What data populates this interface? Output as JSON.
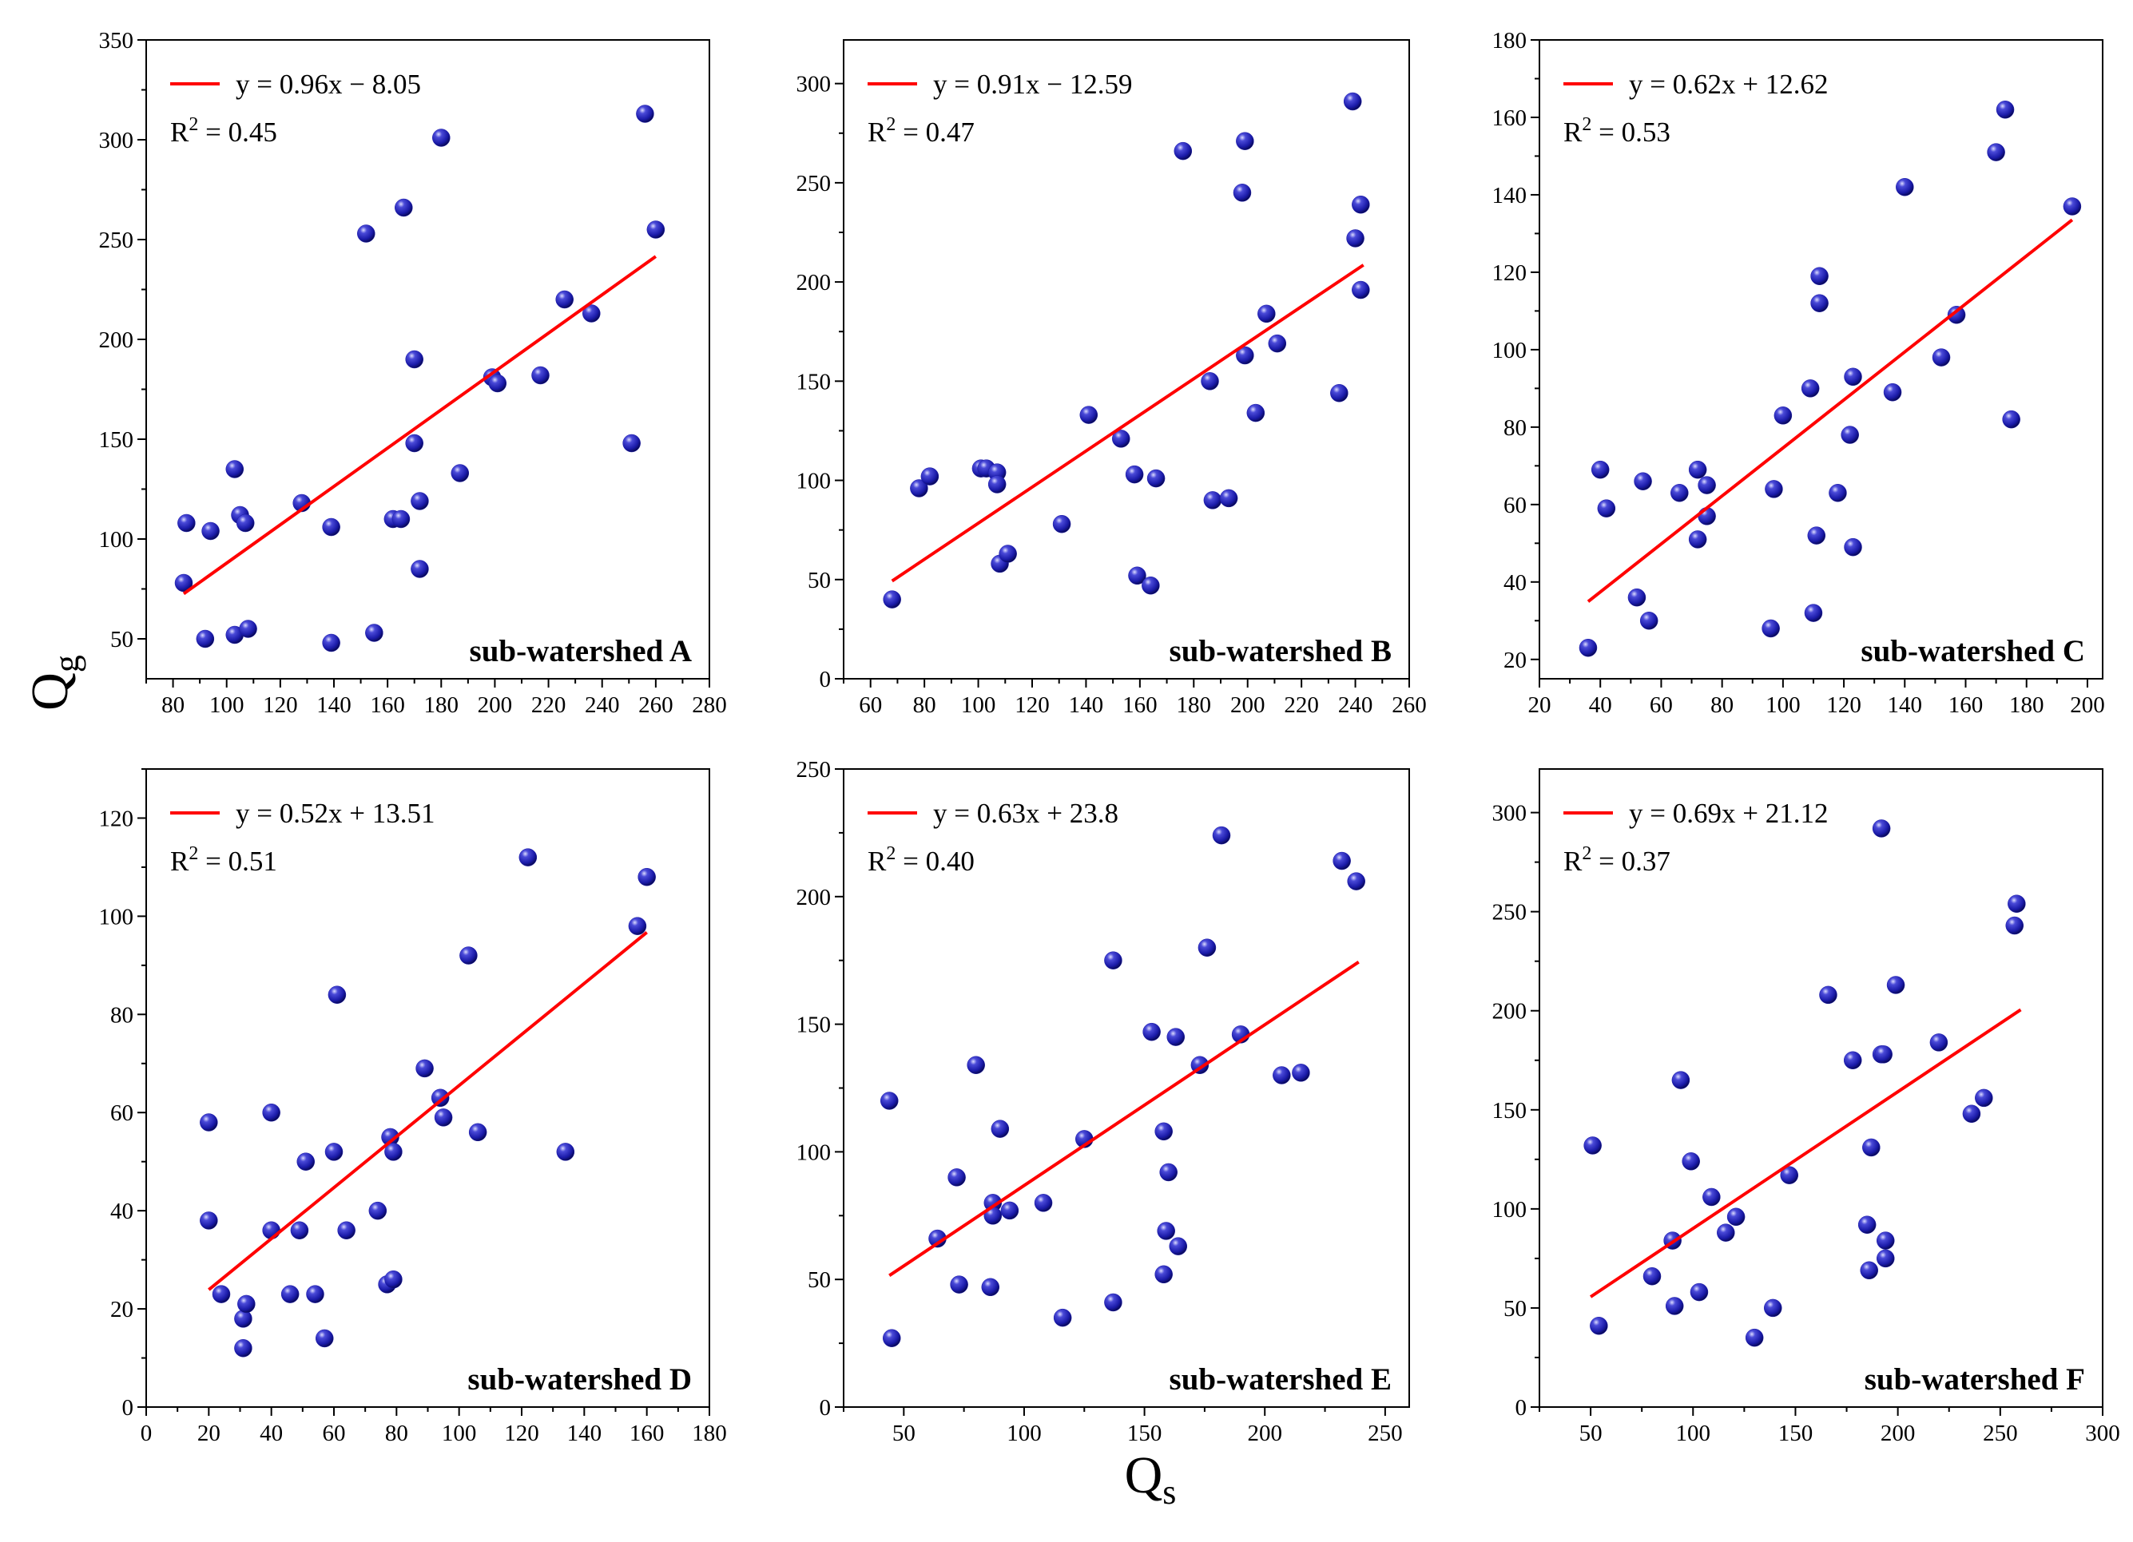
{
  "figure": {
    "ylabel_main": "Q",
    "ylabel_sub": "g",
    "xlabel_main": "Q",
    "xlabel_sub": "s"
  },
  "colors": {
    "points": "#1a1aa8",
    "fit_line": "#ff0000"
  },
  "chart_data": [
    {
      "type": "scatter",
      "panel_label": "sub-watershed A",
      "equation": "y = 0.96x − 8.05",
      "r2_prefix": "R",
      "r2_value": " = 0.45",
      "xlim": [
        70,
        280
      ],
      "ylim": [
        30,
        350
      ],
      "xticks": [
        80,
        100,
        120,
        140,
        160,
        180,
        200,
        220,
        240,
        260,
        280
      ],
      "yticks": [
        50,
        100,
        150,
        200,
        250,
        300,
        350
      ],
      "fit": {
        "slope": 0.96,
        "intercept": -8.05,
        "x_range": [
          84,
          260
        ]
      },
      "points": [
        [
          85,
          108
        ],
        [
          84,
          78
        ],
        [
          92,
          50
        ],
        [
          94,
          104
        ],
        [
          103,
          52
        ],
        [
          103,
          135
        ],
        [
          105,
          112
        ],
        [
          107,
          108
        ],
        [
          108,
          55
        ],
        [
          128,
          118
        ],
        [
          139,
          106
        ],
        [
          139,
          48
        ],
        [
          152,
          253
        ],
        [
          155,
          53
        ],
        [
          162,
          110
        ],
        [
          165,
          110
        ],
        [
          166,
          266
        ],
        [
          170,
          148
        ],
        [
          170,
          190
        ],
        [
          172,
          119
        ],
        [
          172,
          85
        ],
        [
          180,
          301
        ],
        [
          187,
          133
        ],
        [
          199,
          181
        ],
        [
          201,
          178
        ],
        [
          217,
          182
        ],
        [
          226,
          220
        ],
        [
          236,
          213
        ],
        [
          251,
          148
        ],
        [
          256,
          313
        ],
        [
          260,
          255
        ]
      ]
    },
    {
      "type": "scatter",
      "panel_label": "sub-watershed B",
      "equation": "y = 0.91x − 12.59",
      "r2_prefix": "R",
      "r2_value": " = 0.47",
      "xlim": [
        50,
        260
      ],
      "ylim": [
        0,
        322
      ],
      "xticks": [
        60,
        80,
        100,
        120,
        140,
        160,
        180,
        200,
        220,
        240,
        260
      ],
      "yticks": [
        0,
        50,
        100,
        150,
        200,
        250,
        300
      ],
      "fit": {
        "slope": 0.91,
        "intercept": -12.59,
        "x_range": [
          68,
          243
        ]
      },
      "points": [
        [
          68,
          40
        ],
        [
          78,
          96
        ],
        [
          82,
          102
        ],
        [
          101,
          106
        ],
        [
          103,
          106
        ],
        [
          107,
          104
        ],
        [
          107,
          98
        ],
        [
          108,
          58
        ],
        [
          111,
          63
        ],
        [
          131,
          78
        ],
        [
          141,
          133
        ],
        [
          153,
          121
        ],
        [
          158,
          103
        ],
        [
          159,
          52
        ],
        [
          164,
          47
        ],
        [
          166,
          101
        ],
        [
          176,
          266
        ],
        [
          186,
          150
        ],
        [
          187,
          90
        ],
        [
          193,
          91
        ],
        [
          198,
          245
        ],
        [
          199,
          271
        ],
        [
          199,
          163
        ],
        [
          203,
          134
        ],
        [
          207,
          184
        ],
        [
          211,
          169
        ],
        [
          234,
          144
        ],
        [
          239,
          291
        ],
        [
          240,
          222
        ],
        [
          242,
          239
        ],
        [
          242,
          196
        ]
      ]
    },
    {
      "type": "scatter",
      "panel_label": "sub-watershed C",
      "equation": "y = 0.62x + 12.62",
      "r2_prefix": "R",
      "r2_value": " = 0.53",
      "xlim": [
        20,
        205
      ],
      "ylim": [
        15,
        180
      ],
      "xticks": [
        20,
        40,
        60,
        80,
        100,
        120,
        140,
        160,
        180,
        200
      ],
      "yticks": [
        20,
        40,
        60,
        80,
        100,
        120,
        140,
        160,
        180
      ],
      "fit": {
        "slope": 0.62,
        "intercept": 12.62,
        "x_range": [
          36,
          195
        ]
      },
      "points": [
        [
          36,
          23
        ],
        [
          40,
          69
        ],
        [
          42,
          59
        ],
        [
          52,
          36
        ],
        [
          54,
          66
        ],
        [
          56,
          30
        ],
        [
          66,
          63
        ],
        [
          72,
          69
        ],
        [
          72,
          51
        ],
        [
          75,
          65
        ],
        [
          75,
          57
        ],
        [
          96,
          28
        ],
        [
          97,
          64
        ],
        [
          100,
          83
        ],
        [
          109,
          90
        ],
        [
          110,
          32
        ],
        [
          111,
          52
        ],
        [
          112,
          119
        ],
        [
          112,
          112
        ],
        [
          118,
          63
        ],
        [
          122,
          78
        ],
        [
          123,
          93
        ],
        [
          123,
          49
        ],
        [
          136,
          89
        ],
        [
          140,
          142
        ],
        [
          152,
          98
        ],
        [
          157,
          109
        ],
        [
          170,
          151
        ],
        [
          173,
          162
        ],
        [
          175,
          82
        ],
        [
          195,
          137
        ]
      ]
    },
    {
      "type": "scatter",
      "panel_label": "sub-watershed D",
      "equation": "y = 0.52x + 13.51",
      "r2_prefix": "R",
      "r2_value": " = 0.51",
      "xlim": [
        0,
        180
      ],
      "ylim": [
        0,
        130
      ],
      "xticks": [
        0,
        20,
        40,
        60,
        80,
        100,
        120,
        140,
        160,
        180
      ],
      "yticks": [
        0,
        20,
        40,
        60,
        80,
        100,
        120
      ],
      "fit": {
        "slope": 0.52,
        "intercept": 13.51,
        "x_range": [
          20,
          160
        ]
      },
      "points": [
        [
          20,
          58
        ],
        [
          20,
          38
        ],
        [
          24,
          23
        ],
        [
          31,
          12
        ],
        [
          31,
          18
        ],
        [
          32,
          21
        ],
        [
          40,
          60
        ],
        [
          40,
          36
        ],
        [
          46,
          23
        ],
        [
          49,
          36
        ],
        [
          51,
          50
        ],
        [
          54,
          23
        ],
        [
          57,
          14
        ],
        [
          60,
          52
        ],
        [
          61,
          84
        ],
        [
          64,
          36
        ],
        [
          74,
          40
        ],
        [
          77,
          25
        ],
        [
          78,
          55
        ],
        [
          79,
          26
        ],
        [
          79,
          52
        ],
        [
          89,
          69
        ],
        [
          94,
          63
        ],
        [
          95,
          59
        ],
        [
          103,
          92
        ],
        [
          106,
          56
        ],
        [
          122,
          112
        ],
        [
          134,
          52
        ],
        [
          157,
          98
        ],
        [
          160,
          108
        ]
      ]
    },
    {
      "type": "scatter",
      "panel_label": "sub-watershed E",
      "equation": "y = 0.63x + 23.8",
      "r2_prefix": "R",
      "r2_value": " = 0.40",
      "xlim": [
        25,
        260
      ],
      "ylim": [
        0,
        250
      ],
      "xticks": [
        50,
        100,
        150,
        200,
        250
      ],
      "yticks": [
        0,
        50,
        100,
        150,
        200,
        250
      ],
      "fit": {
        "slope": 0.63,
        "intercept": 23.8,
        "x_range": [
          44,
          239
        ]
      },
      "points": [
        [
          44,
          120
        ],
        [
          45,
          27
        ],
        [
          64,
          66
        ],
        [
          72,
          90
        ],
        [
          73,
          48
        ],
        [
          80,
          134
        ],
        [
          86,
          47
        ],
        [
          87,
          80
        ],
        [
          87,
          75
        ],
        [
          90,
          109
        ],
        [
          94,
          77
        ],
        [
          108,
          80
        ],
        [
          116,
          35
        ],
        [
          125,
          105
        ],
        [
          137,
          175
        ],
        [
          137,
          41
        ],
        [
          153,
          147
        ],
        [
          158,
          52
        ],
        [
          158,
          108
        ],
        [
          159,
          69
        ],
        [
          160,
          92
        ],
        [
          163,
          145
        ],
        [
          164,
          63
        ],
        [
          173,
          134
        ],
        [
          176,
          180
        ],
        [
          182,
          224
        ],
        [
          190,
          146
        ],
        [
          207,
          130
        ],
        [
          215,
          131
        ],
        [
          232,
          214
        ],
        [
          238,
          206
        ]
      ]
    },
    {
      "type": "scatter",
      "panel_label": "sub-watershed F",
      "equation": "y = 0.69x + 21.12",
      "r2_prefix": "R",
      "r2_value": " = 0.37",
      "xlim": [
        25,
        300
      ],
      "ylim": [
        0,
        322
      ],
      "xticks": [
        50,
        100,
        150,
        200,
        250,
        300
      ],
      "yticks": [
        0,
        50,
        100,
        150,
        200,
        250,
        300
      ],
      "fit": {
        "slope": 0.69,
        "intercept": 21.12,
        "x_range": [
          50,
          260
        ]
      },
      "points": [
        [
          51,
          132
        ],
        [
          54,
          41
        ],
        [
          80,
          66
        ],
        [
          90,
          84
        ],
        [
          91,
          51
        ],
        [
          94,
          165
        ],
        [
          99,
          124
        ],
        [
          103,
          58
        ],
        [
          109,
          106
        ],
        [
          116,
          88
        ],
        [
          121,
          96
        ],
        [
          130,
          35
        ],
        [
          139,
          50
        ],
        [
          147,
          117
        ],
        [
          166,
          208
        ],
        [
          178,
          175
        ],
        [
          185,
          92
        ],
        [
          186,
          69
        ],
        [
          187,
          131
        ],
        [
          192,
          292
        ],
        [
          192,
          178
        ],
        [
          193,
          178
        ],
        [
          194,
          84
        ],
        [
          194,
          75
        ],
        [
          199,
          213
        ],
        [
          220,
          184
        ],
        [
          236,
          148
        ],
        [
          242,
          156
        ],
        [
          257,
          243
        ],
        [
          258,
          254
        ]
      ]
    }
  ]
}
